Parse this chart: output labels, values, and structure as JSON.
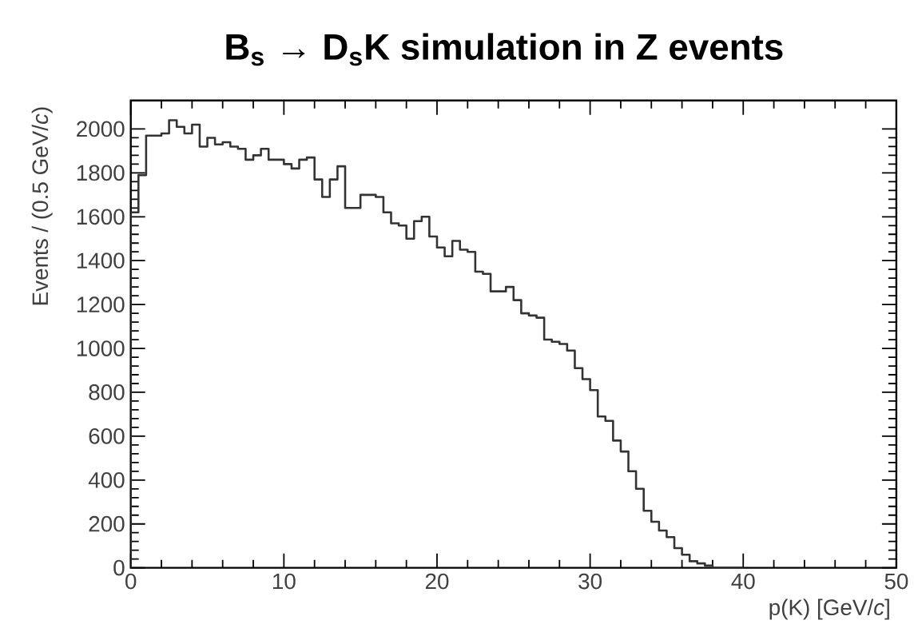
{
  "chart_data": {
    "type": "histogram",
    "title": "**B$_{s}$ → D$_{s}$K simulation in Z events**",
    "xlabel": "p(K) [GeV/*c*]",
    "ylabel": "Events / (0.5 GeV/*c*)",
    "bins": [
      0,
      0.5,
      1,
      1.5,
      2,
      2.5,
      3,
      3.5,
      4,
      4.5,
      5,
      5.5,
      6,
      6.5,
      7,
      7.5,
      8,
      8.5,
      9,
      9.5,
      10,
      10.5,
      11,
      11.5,
      12,
      12.5,
      13,
      13.5,
      14,
      14.5,
      15,
      15.5,
      16,
      16.5,
      17,
      17.5,
      18,
      18.5,
      19,
      19.5,
      20,
      20.5,
      21,
      21.5,
      22,
      22.5,
      23,
      23.5,
      24,
      24.5,
      25,
      25.5,
      26,
      26.5,
      27,
      27.5,
      28,
      28.5,
      29,
      29.5,
      30,
      30.5,
      31,
      31.5,
      32,
      32.5,
      33,
      33.5,
      34,
      34.5,
      35,
      35.5,
      36,
      36.5,
      37,
      37.5,
      38,
      38.5,
      39,
      39.5,
      40
    ],
    "values": [
      1620,
      1790,
      1970,
      1970,
      1980,
      2040,
      2010,
      1980,
      2020,
      1920,
      1960,
      1930,
      1940,
      1920,
      1910,
      1860,
      1880,
      1910,
      1860,
      1860,
      1840,
      1820,
      1860,
      1870,
      1770,
      1690,
      1770,
      1830,
      1640,
      1640,
      1700,
      1700,
      1690,
      1620,
      1570,
      1560,
      1500,
      1580,
      1600,
      1510,
      1460,
      1420,
      1490,
      1450,
      1440,
      1350,
      1340,
      1260,
      1260,
      1280,
      1220,
      1160,
      1150,
      1140,
      1040,
      1030,
      1020,
      990,
      910,
      860,
      810,
      690,
      670,
      580,
      530,
      440,
      360,
      260,
      210,
      170,
      140,
      90,
      60,
      30,
      20,
      10,
      0,
      0,
      0,
      0
    ],
    "color": "#333333",
    "xlim": [
      0,
      50
    ],
    "xticks": [
      0,
      10,
      20,
      30,
      40,
      50
    ],
    "ylim": [
      0,
      2130
    ],
    "yticks": [
      0,
      200,
      400,
      600,
      800,
      1000,
      1200,
      1400,
      1600,
      1800,
      2000
    ]
  }
}
